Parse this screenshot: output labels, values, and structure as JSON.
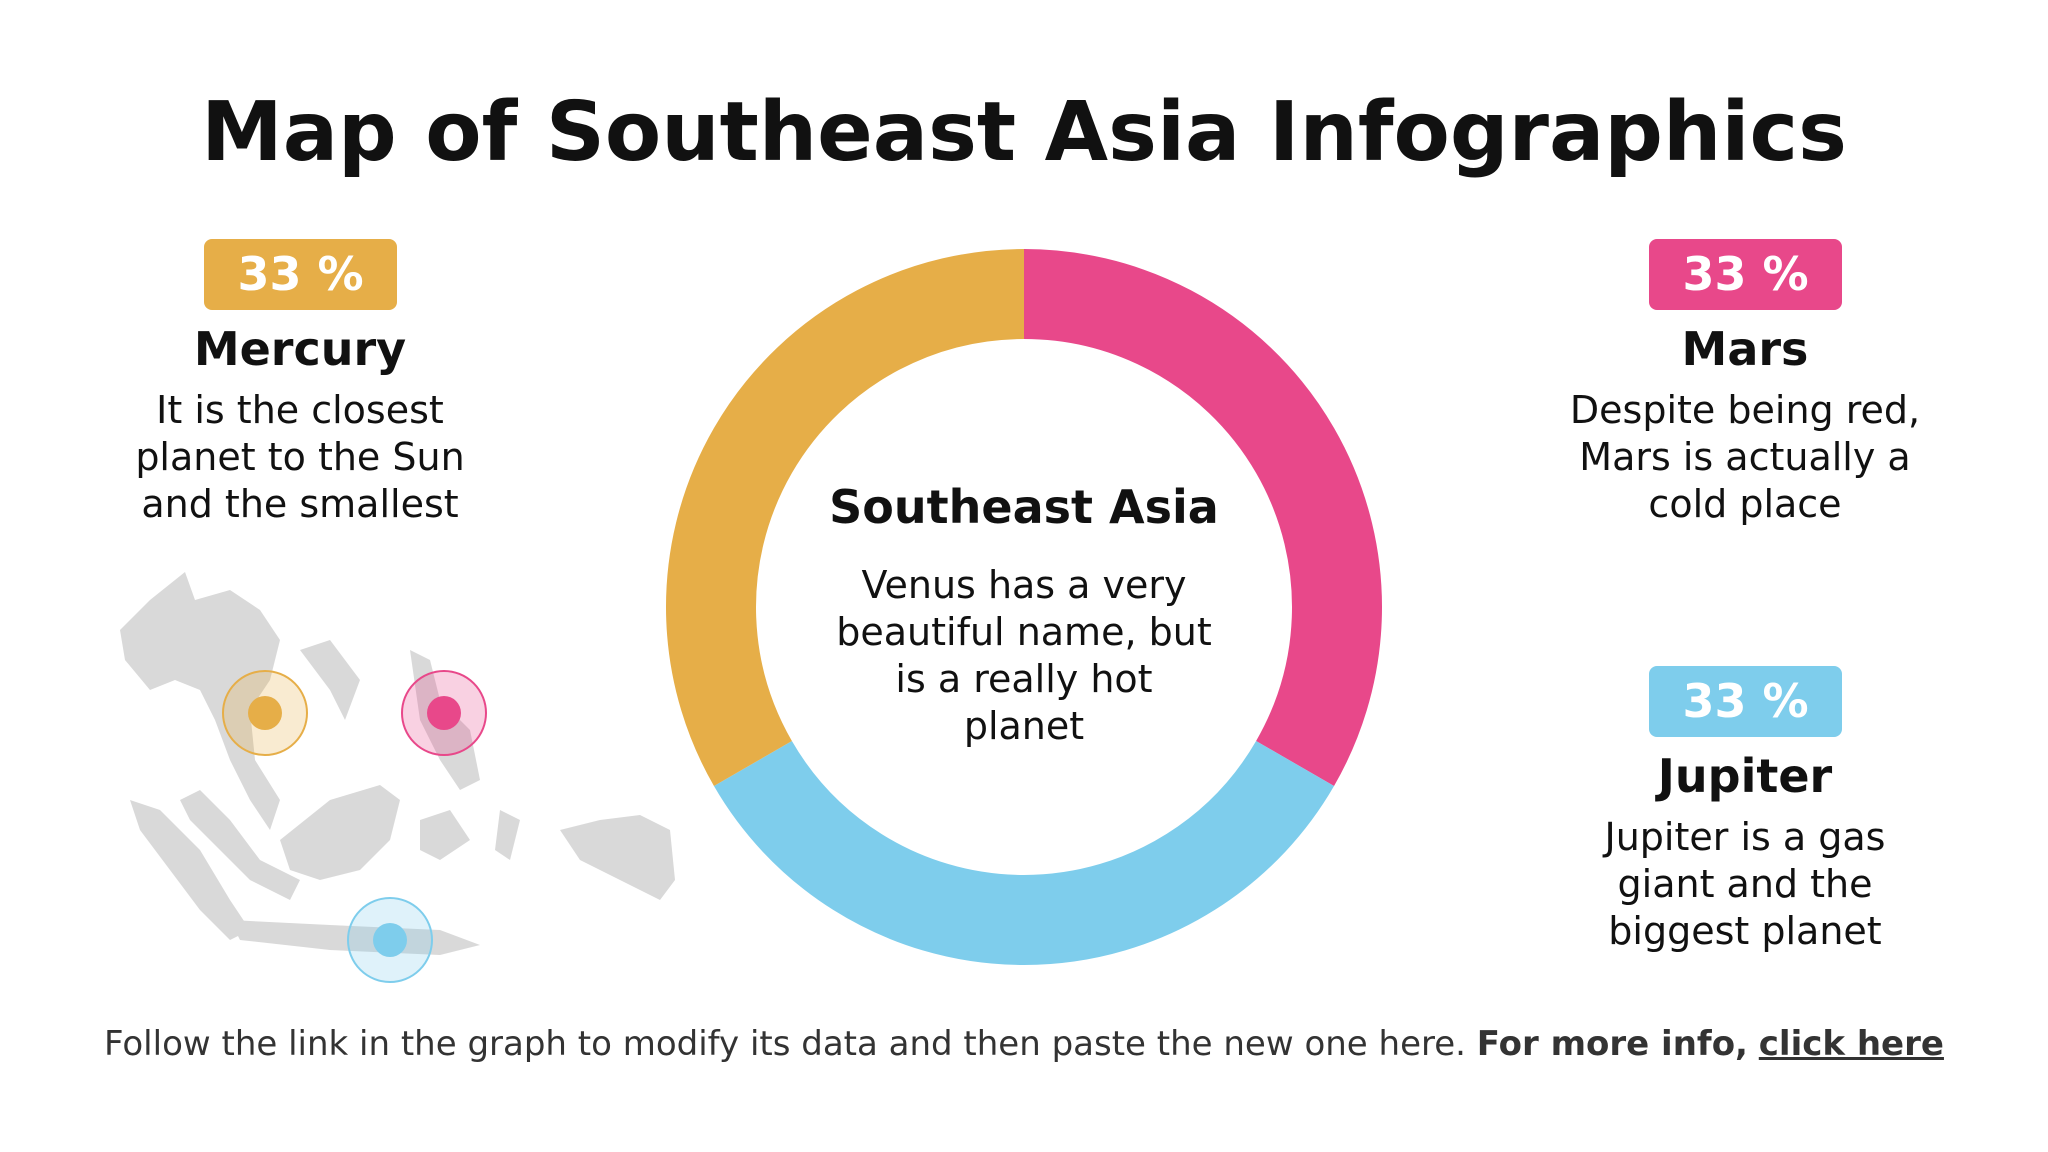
{
  "chart_data": {
    "type": "pie",
    "title": "Map of Southeast Asia Infographics",
    "categories": [
      "Mars",
      "Jupiter",
      "Mercury"
    ],
    "values": [
      33,
      33,
      33
    ],
    "value_labels": [
      "33 %",
      "33 %",
      "33 %"
    ],
    "colors": [
      "#e8488a",
      "#7ecdec",
      "#e6ae48"
    ],
    "descriptions": [
      "Despite being red, Mars is actually a cold place",
      "Jupiter is a gas giant and the biggest planet",
      "It is the closest planet to the Sun and the smallest"
    ],
    "center_label": "Southeast Asia",
    "center_text": "Venus has a very beautiful name, but is a really hot planet",
    "footer": {
      "text": "Follow the link in the graph to modify its data and then paste the new one here.",
      "bold": "For more info,",
      "link": "click here"
    }
  }
}
